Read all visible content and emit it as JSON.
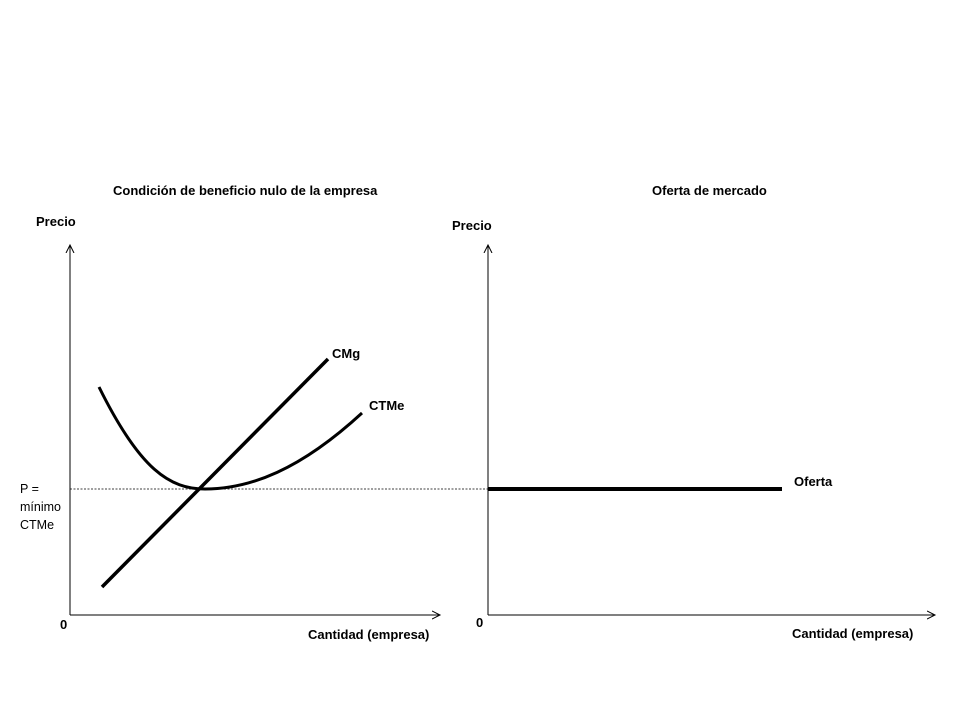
{
  "left_panel": {
    "title": "Condición de beneficio nulo de la empresa",
    "y_axis_label": "Precio",
    "x_axis_label": "Cantidad (empresa)",
    "origin_label": "0",
    "curves": {
      "mc_label": "CMg",
      "atc_label": "CTMe"
    },
    "price_label_lines": [
      "P =",
      "mínimo",
      "CTMe"
    ]
  },
  "right_panel": {
    "title": "Oferta de mercado",
    "y_axis_label": "Precio",
    "x_axis_label": "Cantidad (empresa)",
    "origin_label": "0",
    "supply_label": "Oferta"
  },
  "colors": {
    "ink": "#000000",
    "background": "#ffffff"
  }
}
